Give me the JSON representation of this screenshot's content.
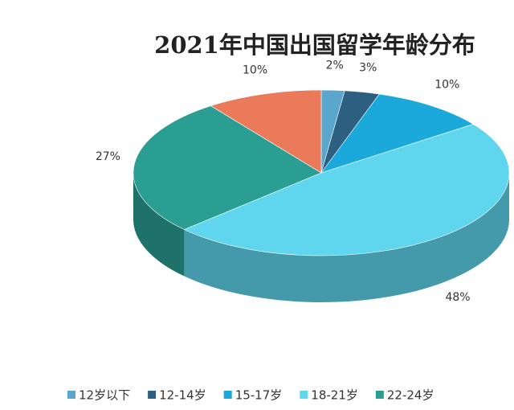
{
  "chart_data": {
    "type": "pie",
    "title": "2021年中国出国留学年龄分布",
    "categories": [
      "12岁以下",
      "12-14岁",
      "15-17岁",
      "18-21岁",
      "22-24岁",
      null
    ],
    "values": [
      2,
      3,
      10,
      48,
      27,
      10
    ],
    "value_labels": [
      "2%",
      "3%",
      "10%",
      "48%",
      "27%",
      "10%"
    ],
    "colors": [
      "#5aa6cc",
      "#2c5f80",
      "#1ba9db",
      "#5fd6ee",
      "#2a9e92",
      "#eb7a5a"
    ]
  }
}
